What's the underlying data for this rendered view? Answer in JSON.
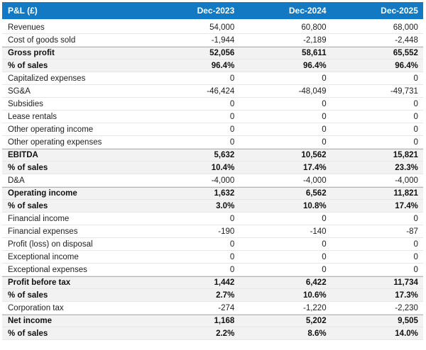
{
  "chart_data": {
    "type": "table",
    "title": "P&L (£)",
    "columns": [
      "Dec-2023",
      "Dec-2024",
      "Dec-2025"
    ],
    "rows": [
      {
        "label": "Revenues",
        "values": [
          "54,000",
          "60,800",
          "68,000"
        ],
        "emphasized": false,
        "group_start": false
      },
      {
        "label": "Cost of goods sold",
        "values": [
          "-1,944",
          "-2,189",
          "-2,448"
        ],
        "emphasized": false,
        "group_start": false
      },
      {
        "label": "Gross profit",
        "values": [
          "52,056",
          "58,611",
          "65,552"
        ],
        "emphasized": true,
        "group_start": true
      },
      {
        "label": "% of sales",
        "values": [
          "96.4%",
          "96.4%",
          "96.4%"
        ],
        "emphasized": true,
        "group_start": false
      },
      {
        "label": "Capitalized expenses",
        "values": [
          "0",
          "0",
          "0"
        ],
        "emphasized": false,
        "group_start": false
      },
      {
        "label": "SG&A",
        "values": [
          "-46,424",
          "-48,049",
          "-49,731"
        ],
        "emphasized": false,
        "group_start": false
      },
      {
        "label": "Subsidies",
        "values": [
          "0",
          "0",
          "0"
        ],
        "emphasized": false,
        "group_start": false
      },
      {
        "label": "Lease rentals",
        "values": [
          "0",
          "0",
          "0"
        ],
        "emphasized": false,
        "group_start": false
      },
      {
        "label": "Other operating income",
        "values": [
          "0",
          "0",
          "0"
        ],
        "emphasized": false,
        "group_start": false
      },
      {
        "label": "Other operating expenses",
        "values": [
          "0",
          "0",
          "0"
        ],
        "emphasized": false,
        "group_start": false
      },
      {
        "label": "EBITDA",
        "values": [
          "5,632",
          "10,562",
          "15,821"
        ],
        "emphasized": true,
        "group_start": true
      },
      {
        "label": "% of sales",
        "values": [
          "10.4%",
          "17.4%",
          "23.3%"
        ],
        "emphasized": true,
        "group_start": false
      },
      {
        "label": "D&A",
        "values": [
          "-4,000",
          "-4,000",
          "-4,000"
        ],
        "emphasized": false,
        "group_start": false
      },
      {
        "label": "Operating income",
        "values": [
          "1,632",
          "6,562",
          "11,821"
        ],
        "emphasized": true,
        "group_start": true
      },
      {
        "label": "% of sales",
        "values": [
          "3.0%",
          "10.8%",
          "17.4%"
        ],
        "emphasized": true,
        "group_start": false
      },
      {
        "label": "Financial income",
        "values": [
          "0",
          "0",
          "0"
        ],
        "emphasized": false,
        "group_start": false
      },
      {
        "label": "Financial expenses",
        "values": [
          "-190",
          "-140",
          "-87"
        ],
        "emphasized": false,
        "group_start": false
      },
      {
        "label": "Profit (loss) on disposal",
        "values": [
          "0",
          "0",
          "0"
        ],
        "emphasized": false,
        "group_start": false
      },
      {
        "label": "Exceptional income",
        "values": [
          "0",
          "0",
          "0"
        ],
        "emphasized": false,
        "group_start": false
      },
      {
        "label": "Exceptional expenses",
        "values": [
          "0",
          "0",
          "0"
        ],
        "emphasized": false,
        "group_start": false
      },
      {
        "label": "Profit before tax",
        "values": [
          "1,442",
          "6,422",
          "11,734"
        ],
        "emphasized": true,
        "group_start": true
      },
      {
        "label": "% of sales",
        "values": [
          "2.7%",
          "10.6%",
          "17.3%"
        ],
        "emphasized": true,
        "group_start": false
      },
      {
        "label": "Corporation tax",
        "values": [
          "-274",
          "-1,220",
          "-2,230"
        ],
        "emphasized": false,
        "group_start": false
      },
      {
        "label": "Net income",
        "values": [
          "1,168",
          "5,202",
          "9,505"
        ],
        "emphasized": true,
        "group_start": true
      },
      {
        "label": "% of sales",
        "values": [
          "2.2%",
          "8.6%",
          "14.0%"
        ],
        "emphasized": true,
        "group_start": false
      }
    ],
    "layout": {
      "legend": "none",
      "grid": "horizontal-row-borders"
    }
  },
  "colors": {
    "header_bg": "#1279c2",
    "header_text": "#ffffff",
    "summary_row_bg": "#f2f2f2",
    "row_border": "#e7e7e7",
    "group_top_border": "#b5b5b5",
    "body_text": "#212121"
  }
}
